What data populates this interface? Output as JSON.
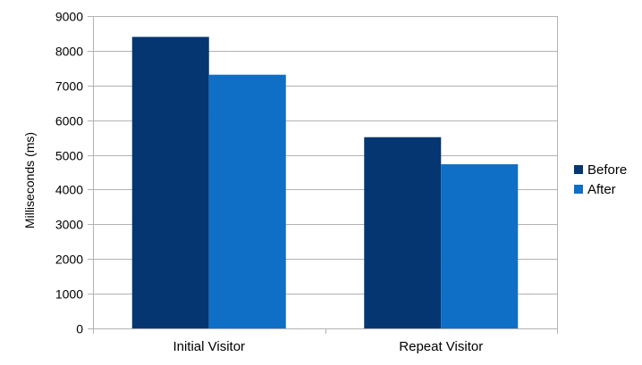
{
  "chart_data": {
    "type": "bar",
    "categories": [
      "Initial Visitor",
      "Repeat Visitor"
    ],
    "series": [
      {
        "name": "Before",
        "values": [
          8400,
          5510
        ],
        "color": "#053672"
      },
      {
        "name": "After",
        "values": [
          7310,
          4730
        ],
        "color": "#0f6fc6"
      }
    ],
    "title": "",
    "xlabel": "",
    "ylabel": "Milliseconds (ms)",
    "ylim": [
      0,
      9000
    ],
    "yticks": [
      0,
      1000,
      2000,
      3000,
      4000,
      5000,
      6000,
      7000,
      8000,
      9000
    ],
    "grid": true,
    "legend_position": "right"
  }
}
